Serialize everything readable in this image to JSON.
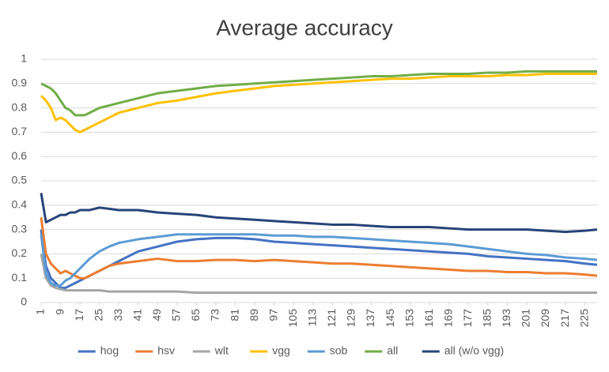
{
  "chart_data": {
    "type": "line",
    "title": "Average accuracy",
    "x": [
      1,
      3,
      5,
      7,
      9,
      11,
      13,
      15,
      17,
      19,
      21,
      25,
      29,
      33,
      41,
      49,
      57,
      65,
      73,
      81,
      89,
      97,
      105,
      113,
      121,
      129,
      137,
      145,
      153,
      161,
      169,
      177,
      185,
      193,
      201,
      209,
      217,
      225,
      230
    ],
    "series": [
      {
        "name": "hog",
        "color": "#4472c4",
        "values": [
          0.3,
          0.15,
          0.1,
          0.08,
          0.06,
          0.06,
          0.07,
          0.08,
          0.09,
          0.1,
          0.11,
          0.13,
          0.15,
          0.17,
          0.21,
          0.23,
          0.25,
          0.26,
          0.265,
          0.265,
          0.26,
          0.25,
          0.245,
          0.24,
          0.235,
          0.23,
          0.225,
          0.22,
          0.215,
          0.21,
          0.205,
          0.2,
          0.19,
          0.185,
          0.18,
          0.175,
          0.17,
          0.16,
          0.155
        ]
      },
      {
        "name": "hsv",
        "color": "#ed7d31",
        "values": [
          0.35,
          0.2,
          0.16,
          0.14,
          0.12,
          0.13,
          0.12,
          0.11,
          0.1,
          0.1,
          0.11,
          0.13,
          0.15,
          0.16,
          0.17,
          0.18,
          0.17,
          0.17,
          0.175,
          0.175,
          0.17,
          0.175,
          0.17,
          0.165,
          0.16,
          0.16,
          0.155,
          0.15,
          0.145,
          0.14,
          0.135,
          0.13,
          0.13,
          0.125,
          0.125,
          0.12,
          0.12,
          0.115,
          0.11
        ]
      },
      {
        "name": "wlt",
        "color": "#a5a5a5",
        "values": [
          0.2,
          0.1,
          0.07,
          0.06,
          0.055,
          0.05,
          0.05,
          0.05,
          0.05,
          0.05,
          0.05,
          0.05,
          0.045,
          0.045,
          0.045,
          0.045,
          0.045,
          0.04,
          0.04,
          0.04,
          0.04,
          0.04,
          0.04,
          0.04,
          0.04,
          0.04,
          0.04,
          0.04,
          0.04,
          0.04,
          0.04,
          0.04,
          0.04,
          0.04,
          0.04,
          0.04,
          0.04,
          0.04,
          0.04
        ]
      },
      {
        "name": "vgg",
        "color": "#ffc000",
        "values": [
          0.85,
          0.83,
          0.8,
          0.75,
          0.76,
          0.75,
          0.73,
          0.71,
          0.7,
          0.71,
          0.72,
          0.74,
          0.76,
          0.78,
          0.8,
          0.82,
          0.83,
          0.845,
          0.86,
          0.87,
          0.88,
          0.89,
          0.895,
          0.9,
          0.905,
          0.91,
          0.915,
          0.92,
          0.92,
          0.925,
          0.93,
          0.93,
          0.93,
          0.935,
          0.935,
          0.94,
          0.94,
          0.94,
          0.94
        ]
      },
      {
        "name": "sob",
        "color": "#5b9bd5",
        "values": [
          0.28,
          0.12,
          0.08,
          0.07,
          0.07,
          0.09,
          0.1,
          0.12,
          0.14,
          0.16,
          0.18,
          0.21,
          0.23,
          0.245,
          0.26,
          0.27,
          0.28,
          0.28,
          0.28,
          0.28,
          0.28,
          0.275,
          0.275,
          0.27,
          0.27,
          0.265,
          0.26,
          0.255,
          0.25,
          0.245,
          0.24,
          0.23,
          0.22,
          0.21,
          0.2,
          0.195,
          0.185,
          0.18,
          0.175
        ]
      },
      {
        "name": "all",
        "color": "#70ad47",
        "values": [
          0.9,
          0.89,
          0.88,
          0.86,
          0.83,
          0.8,
          0.79,
          0.77,
          0.77,
          0.77,
          0.78,
          0.8,
          0.81,
          0.82,
          0.84,
          0.86,
          0.87,
          0.88,
          0.89,
          0.895,
          0.9,
          0.905,
          0.91,
          0.915,
          0.92,
          0.925,
          0.93,
          0.93,
          0.935,
          0.94,
          0.94,
          0.94,
          0.945,
          0.945,
          0.95,
          0.95,
          0.95,
          0.95,
          0.95
        ]
      },
      {
        "name": "all (w/o vgg)",
        "color": "#264478",
        "values": [
          0.45,
          0.33,
          0.34,
          0.35,
          0.36,
          0.36,
          0.37,
          0.37,
          0.38,
          0.38,
          0.38,
          0.39,
          0.385,
          0.38,
          0.38,
          0.37,
          0.365,
          0.36,
          0.35,
          0.345,
          0.34,
          0.335,
          0.33,
          0.325,
          0.32,
          0.32,
          0.315,
          0.31,
          0.31,
          0.31,
          0.305,
          0.3,
          0.3,
          0.3,
          0.3,
          0.295,
          0.29,
          0.295,
          0.3
        ]
      }
    ],
    "xlim": [
      1,
      230
    ],
    "xticks": [
      1,
      9,
      17,
      25,
      33,
      41,
      49,
      57,
      65,
      73,
      81,
      89,
      97,
      105,
      113,
      121,
      129,
      137,
      145,
      153,
      161,
      169,
      177,
      185,
      193,
      201,
      209,
      217,
      225
    ],
    "ylim": [
      0,
      1
    ],
    "yticks": [
      0,
      0.1,
      0.2,
      0.3,
      0.4,
      0.5,
      0.6,
      0.7,
      0.8,
      0.9,
      1
    ],
    "grid": true,
    "legend": "bottom"
  }
}
